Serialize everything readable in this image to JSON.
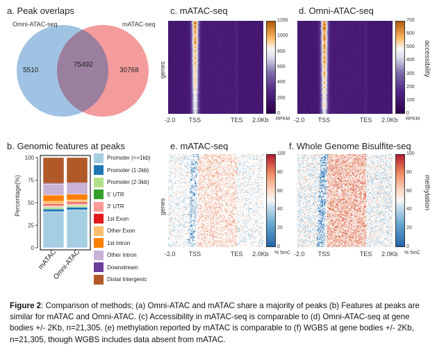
{
  "panel_a": {
    "title": "a. Peak overlaps",
    "set_left_label": "Omni-ATAC-seq",
    "set_right_label": "mATAC-seq",
    "left_only": "5510",
    "intersection": "75492",
    "right_only": "30768",
    "colors": {
      "left": "#8fb8de",
      "right": "#f28b8b",
      "overlap": "#9a7f9e"
    }
  },
  "panel_b": {
    "title": "b. Genomic features at peaks",
    "ylabel": "Percentage(%)",
    "yticks": [
      "0",
      "25",
      "50",
      "75",
      "100"
    ],
    "legend": [
      {
        "label": "Promoter (<=1kb)",
        "color": "#a6cee3"
      },
      {
        "label": "Promoter (1-2kb)",
        "color": "#1f78b4"
      },
      {
        "label": "Promoter (2-3kb)",
        "color": "#b2df8a"
      },
      {
        "label": "5' UTR",
        "color": "#33a02c"
      },
      {
        "label": "3' UTR",
        "color": "#fb9a99"
      },
      {
        "label": "1st Exon",
        "color": "#e31a1c"
      },
      {
        "label": "Other Exon",
        "color": "#fdbf6f"
      },
      {
        "label": "1st Intron",
        "color": "#ff7f00"
      },
      {
        "label": "Other Intron",
        "color": "#cab2d6"
      },
      {
        "label": "Downstream",
        "color": "#6a3d9a"
      },
      {
        "label": "Distal Intergenic",
        "color": "#b15928"
      }
    ]
  },
  "chart_data": {
    "type": "bar",
    "stacked": true,
    "categories": [
      "mATAC",
      "Omni-ATAC"
    ],
    "ylim": [
      0,
      100
    ],
    "ylabel": "Percentage(%)",
    "series": [
      {
        "name": "Promoter (<=1kb)",
        "values": [
          40,
          42
        ]
      },
      {
        "name": "Promoter (1-2kb)",
        "values": [
          3,
          3
        ]
      },
      {
        "name": "Promoter (2-3kb)",
        "values": [
          2,
          2
        ]
      },
      {
        "name": "5' UTR",
        "values": [
          0.5,
          0.5
        ]
      },
      {
        "name": "3' UTR",
        "values": [
          1.5,
          1.5
        ]
      },
      {
        "name": "1st Exon",
        "values": [
          1.5,
          1.5
        ]
      },
      {
        "name": "Other Exon",
        "values": [
          3,
          2.5
        ]
      },
      {
        "name": "1st Intron",
        "values": [
          7,
          6.5
        ]
      },
      {
        "name": "Other Intron",
        "values": [
          12,
          11.5
        ]
      },
      {
        "name": "Downstream",
        "values": [
          1,
          1
        ]
      },
      {
        "name": "Distal Intergenic",
        "values": [
          28.5,
          28
        ]
      }
    ]
  },
  "panel_c": {
    "title": "c. mATAC-seq",
    "ylabel": "genes",
    "xticks": [
      "-2.0",
      "TSS",
      "TES",
      "2.0Kb"
    ],
    "colorbar_ticks": [
      "1200",
      "1000",
      "800",
      "600",
      "400",
      "200",
      "0"
    ],
    "colorbar_unit": "RPKM"
  },
  "panel_d": {
    "title": "d. Omni-ATAC-seq",
    "xticks": [
      "-2.0",
      "TSS",
      "TES",
      "2.0Kb"
    ],
    "colorbar_ticks": [
      "700",
      "600",
      "500",
      "400",
      "300",
      "200",
      "100",
      "0"
    ],
    "colorbar_unit": "RPKM",
    "side_label": "accessibility"
  },
  "panel_e": {
    "title": "e. mATAC-seq",
    "ylabel": "genes",
    "xticks": [
      "-2.0",
      "TSS",
      "TES",
      "2.0Kb"
    ],
    "colorbar_ticks": [
      "100",
      "80",
      "60",
      "40",
      "20",
      "0"
    ],
    "colorbar_unit": "% 5mC"
  },
  "panel_f": {
    "title": "f. Whole Genome Bisulfite-seq",
    "xticks": [
      "-2.0",
      "TSS",
      "TES",
      "2.0Kb"
    ],
    "colorbar_ticks": [
      "100",
      "80",
      "60",
      "40",
      "20",
      "0"
    ],
    "colorbar_unit": "% 5mC",
    "side_label": "methylation"
  },
  "caption": {
    "label": "Figure 2",
    "text": ": Comparison of methods; (a) Omni-ATAC and mATAC share a majority of peaks (b) Features at peaks are similar for mATAC and Omni-ATAC. (c) Accessibility in mATAC-seq is comparable to (d) Omni-ATAC-seq at gene bodies +/- 2Kb, n=21,305. (e) methylation reported by mATAC is comparable to (f) WGBS at gene bodies +/- 2Kb, n=21,305, though WGBS includes data absent from mATAC."
  }
}
